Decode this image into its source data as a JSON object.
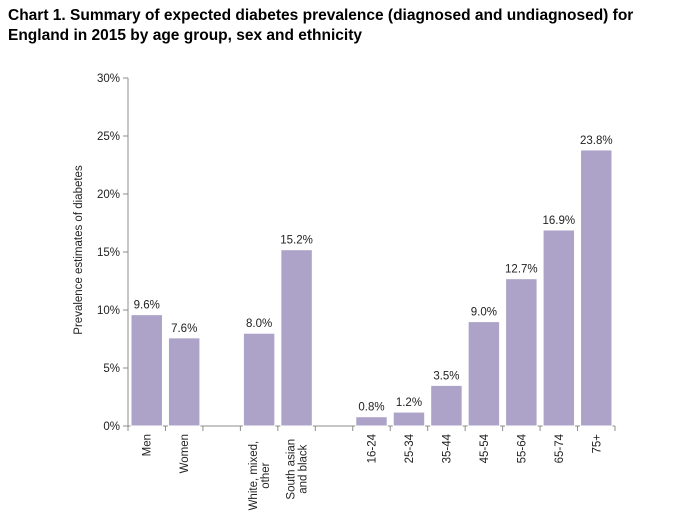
{
  "title": "Chart 1. Summary of expected diabetes prevalence (diagnosed and undiagnosed) for England in 2015 by age group, sex and ethnicity",
  "chart_data": {
    "type": "bar",
    "title": "",
    "ylabel": "Prevalence estimates of diabetes",
    "xlabel": "",
    "ylim": [
      0,
      30
    ],
    "y_ticks": [
      "0%",
      "5%",
      "10%",
      "15%",
      "20%",
      "25%",
      "30%"
    ],
    "grid": false,
    "bar_color": "#ADA3C8",
    "bar_edge_color": "#ffffff",
    "groups": [
      {
        "categories": [
          "Men",
          "Women"
        ],
        "values": [
          9.6,
          7.6
        ],
        "labels": [
          "9.6%",
          "7.6%"
        ]
      },
      {
        "categories": [
          "White, mixed, other",
          "South asian and black"
        ],
        "values": [
          8.0,
          15.2
        ],
        "labels": [
          "8.0%",
          "15.2%"
        ]
      },
      {
        "categories": [
          "16-24",
          "25-34",
          "35-44",
          "45-54",
          "55-64",
          "65-74",
          "75+"
        ],
        "values": [
          0.8,
          1.2,
          3.5,
          9.0,
          12.7,
          16.9,
          23.8
        ],
        "labels": [
          "0.8%",
          "1.2%",
          "3.5%",
          "9.0%",
          "12.7%",
          "16.9%",
          "23.8%"
        ]
      }
    ]
  }
}
